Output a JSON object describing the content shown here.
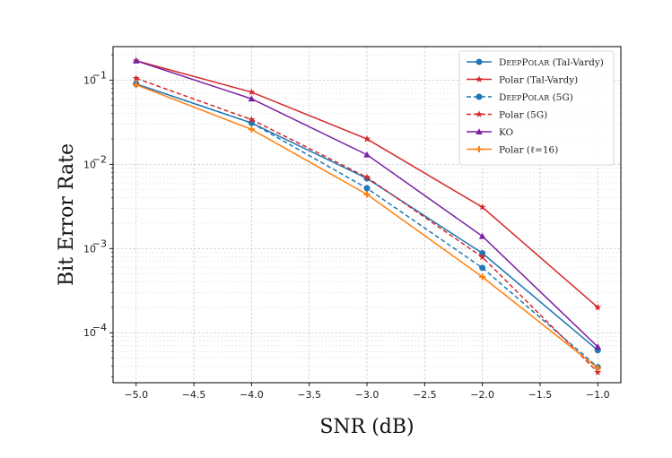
{
  "chart_data": {
    "type": "line",
    "title": "",
    "xlabel": "SNR (dB)",
    "ylabel": "Bit Error Rate",
    "yscale": "log",
    "x": [
      -5.0,
      -4.0,
      -3.0,
      -2.0,
      -1.0
    ],
    "xlim": [
      -5.2,
      -0.8
    ],
    "ylim": [
      2.55e-05,
      0.25
    ],
    "xticks": [
      -5.0,
      -4.5,
      -4.0,
      -3.5,
      -3.0,
      -2.5,
      -2.0,
      -1.5,
      -1.0
    ],
    "xtick_labels": [
      "−5.0",
      "−4.5",
      "−4.0",
      "−3.5",
      "−3.0",
      "−2.5",
      "−2.0",
      "−1.5",
      "−1.0"
    ],
    "yticks": [
      0.1,
      0.01,
      0.001,
      0.0001
    ],
    "ytick_labels": [
      {
        "base": "10",
        "exp": "−1"
      },
      {
        "base": "10",
        "exp": "−2"
      },
      {
        "base": "10",
        "exp": "−3"
      },
      {
        "base": "10",
        "exp": "−4"
      }
    ],
    "grid": true,
    "legend_position": "top-right",
    "series": [
      {
        "name": "DeepPolar (Tal-Vardy)",
        "legend": [
          {
            "t": "D",
            "big": true
          },
          {
            "t": "EEP",
            "big": false
          },
          {
            "t": "P",
            "big": true
          },
          {
            "t": "OLAR",
            "big": false
          },
          {
            "t": " (Tal-Vardy)",
            "big": true
          }
        ],
        "color": "#1f77b4",
        "dash": "solid",
        "marker": "circle",
        "values": [
          0.09,
          0.031,
          0.0068,
          0.00088,
          6.2e-05
        ]
      },
      {
        "name": "Polar (Tal-Vardy)",
        "legend": [
          {
            "t": "Polar (Tal-Vardy)",
            "big": true
          }
        ],
        "color": "#d62728",
        "dash": "solid",
        "marker": "star",
        "values": [
          0.17,
          0.072,
          0.02,
          0.0031,
          0.0002
        ]
      },
      {
        "name": "DeepPolar (5G)",
        "legend": [
          {
            "t": "D",
            "big": true
          },
          {
            "t": "EEP",
            "big": false
          },
          {
            "t": "P",
            "big": true
          },
          {
            "t": "OLAR",
            "big": false
          },
          {
            "t": " (5G)",
            "big": true
          }
        ],
        "color": "#1f77b4",
        "dash": "dashed",
        "marker": "circle",
        "values": [
          0.09,
          0.031,
          0.0052,
          0.00059,
          3.9e-05
        ]
      },
      {
        "name": "Polar (5G)",
        "legend": [
          {
            "t": "Polar (5G)",
            "big": true
          }
        ],
        "color": "#d62728",
        "dash": "dashed",
        "marker": "star",
        "values": [
          0.105,
          0.034,
          0.007,
          0.00079,
          3.4e-05
        ]
      },
      {
        "name": "KO",
        "legend": [
          {
            "t": "KO",
            "big": true
          }
        ],
        "color": "#7b1fa2",
        "dash": "solid",
        "marker": "triangle",
        "values": [
          0.17,
          0.06,
          0.013,
          0.0014,
          6.8e-05
        ]
      },
      {
        "name": "Polar (ℓ=16)",
        "legend": [
          {
            "t": "Polar (ℓ=16)",
            "big": true
          }
        ],
        "color": "#ff7f0e",
        "dash": "solid",
        "marker": "plus",
        "values": [
          0.088,
          0.026,
          0.0044,
          0.00046,
          3.8e-05
        ]
      }
    ]
  }
}
